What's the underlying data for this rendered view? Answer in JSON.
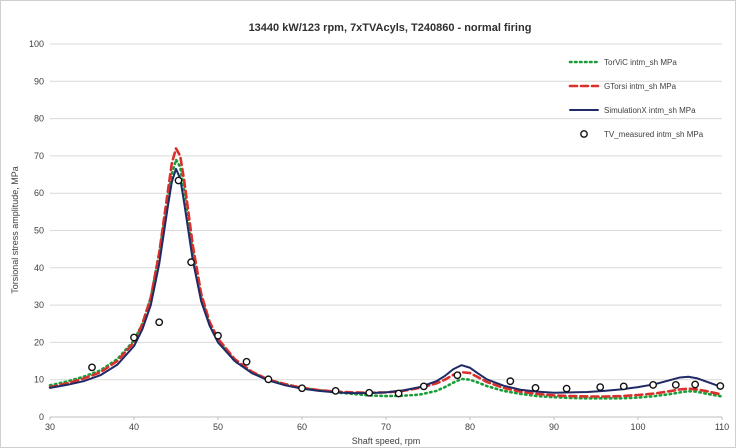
{
  "chart_data": {
    "type": "line",
    "title": "13440 kW/123 rpm, 7xTVAcyls, T240860 - normal firing",
    "xlabel": "Shaft speed, rpm",
    "ylabel": "Torsional stress amplitude, MPa",
    "xlim": [
      30,
      110
    ],
    "ylim": [
      0,
      100
    ],
    "xticks": [
      30,
      40,
      50,
      60,
      70,
      80,
      90,
      100,
      110
    ],
    "yticks": [
      0,
      10,
      20,
      30,
      40,
      50,
      60,
      70,
      80,
      90,
      100
    ],
    "grid": "horizontal",
    "legend_position": "top-right",
    "series": [
      {
        "name": "TorViC intm_sh MPa",
        "style": "dotted",
        "color": "#1a9e3a",
        "x": [
          30,
          32,
          34,
          36,
          38,
          40,
          41,
          42,
          43,
          44,
          44.5,
          45,
          45.5,
          46,
          47,
          48,
          49,
          50,
          52,
          54,
          56,
          58,
          60,
          62,
          64,
          66,
          68,
          70,
          72,
          74,
          76,
          77,
          78,
          79,
          80,
          81,
          82,
          84,
          86,
          88,
          90,
          92,
          94,
          96,
          98,
          100,
          102,
          104,
          105,
          106,
          107,
          108,
          110
        ],
        "y": [
          8.5,
          9.5,
          10.8,
          12.5,
          15.5,
          20.5,
          25,
          32,
          44,
          58,
          65,
          69,
          67,
          60,
          44,
          32,
          25,
          20.5,
          15,
          12,
          10,
          8.8,
          7.8,
          7.2,
          6.6,
          6.2,
          5.8,
          5.6,
          5.7,
          6,
          7,
          8,
          9.2,
          10.2,
          10,
          9.2,
          8.3,
          7,
          6.2,
          5.6,
          5.3,
          5.1,
          5,
          5,
          5,
          5.2,
          5.6,
          6.2,
          6.6,
          6.9,
          6.8,
          6.3,
          5.5
        ]
      },
      {
        "name": "GTorsi intm_sh MPa",
        "style": "dashed",
        "color": "#d9302b",
        "x": [
          30,
          32,
          34,
          36,
          38,
          40,
          41,
          42,
          43,
          44,
          44.5,
          45,
          45.5,
          46,
          47,
          48,
          49,
          50,
          52,
          54,
          56,
          58,
          60,
          62,
          64,
          66,
          68,
          70,
          72,
          74,
          76,
          77,
          78,
          79,
          80,
          81,
          82,
          84,
          86,
          88,
          90,
          92,
          94,
          96,
          98,
          100,
          102,
          104,
          105,
          106,
          107,
          108,
          110
        ],
        "y": [
          8,
          9,
          10.3,
          12,
          15,
          20,
          25,
          32,
          44,
          60,
          68,
          72,
          70,
          63,
          46,
          33,
          25.5,
          21,
          15.5,
          12.2,
          10,
          8.8,
          7.8,
          7.2,
          6.8,
          6.6,
          6.5,
          6.6,
          7,
          7.8,
          9,
          10,
          11.3,
          12,
          11.8,
          10.6,
          9.4,
          7.8,
          6.8,
          6.2,
          5.8,
          5.6,
          5.5,
          5.5,
          5.6,
          5.9,
          6.3,
          7,
          7.4,
          7.6,
          7.4,
          7,
          6
        ]
      },
      {
        "name": "SimulationX intm_sh MPa",
        "style": "solid",
        "color": "#1f2a66",
        "x": [
          30,
          32,
          34,
          36,
          38,
          40,
          41,
          42,
          43,
          44,
          44.5,
          45,
          45.5,
          46,
          47,
          48,
          49,
          50,
          52,
          54,
          56,
          58,
          60,
          62,
          64,
          66,
          68,
          70,
          72,
          74,
          76,
          77,
          78,
          79,
          80,
          81,
          82,
          84,
          86,
          88,
          90,
          92,
          94,
          96,
          98,
          100,
          102,
          104,
          105,
          106,
          107,
          108,
          110
        ],
        "y": [
          7.8,
          8.6,
          9.6,
          11.2,
          14,
          19,
          23.5,
          30,
          41,
          56,
          63,
          66.5,
          64,
          57,
          42,
          31,
          24.5,
          20,
          15,
          11.8,
          9.8,
          8.5,
          7.6,
          7,
          6.6,
          6.4,
          6.4,
          6.6,
          7.1,
          8,
          9.6,
          11,
          12.8,
          13.9,
          13.2,
          11.6,
          10.1,
          8.4,
          7.3,
          6.8,
          6.5,
          6.6,
          6.7,
          7,
          7.4,
          8,
          8.8,
          10,
          10.6,
          10.8,
          10.4,
          9.6,
          8
        ]
      },
      {
        "name": "TV_measured intm_sh MPa",
        "style": "markers",
        "color": "#111111",
        "x": [
          35,
          40,
          43,
          45.3,
          46.8,
          50,
          53.4,
          56,
          60,
          64,
          68,
          71.5,
          74.5,
          78.5,
          84.8,
          87.8,
          91.5,
          95.5,
          98.3,
          101.8,
          104.5,
          106.8,
          109.8
        ],
        "y": [
          13.3,
          21.3,
          25.4,
          63.4,
          41.5,
          21.8,
          14.8,
          10.1,
          7.7,
          7,
          6.5,
          6.3,
          8.2,
          11.2,
          9.6,
          7.8,
          7.6,
          8,
          8.2,
          8.6,
          8.6,
          8.7,
          8.3
        ]
      }
    ]
  }
}
